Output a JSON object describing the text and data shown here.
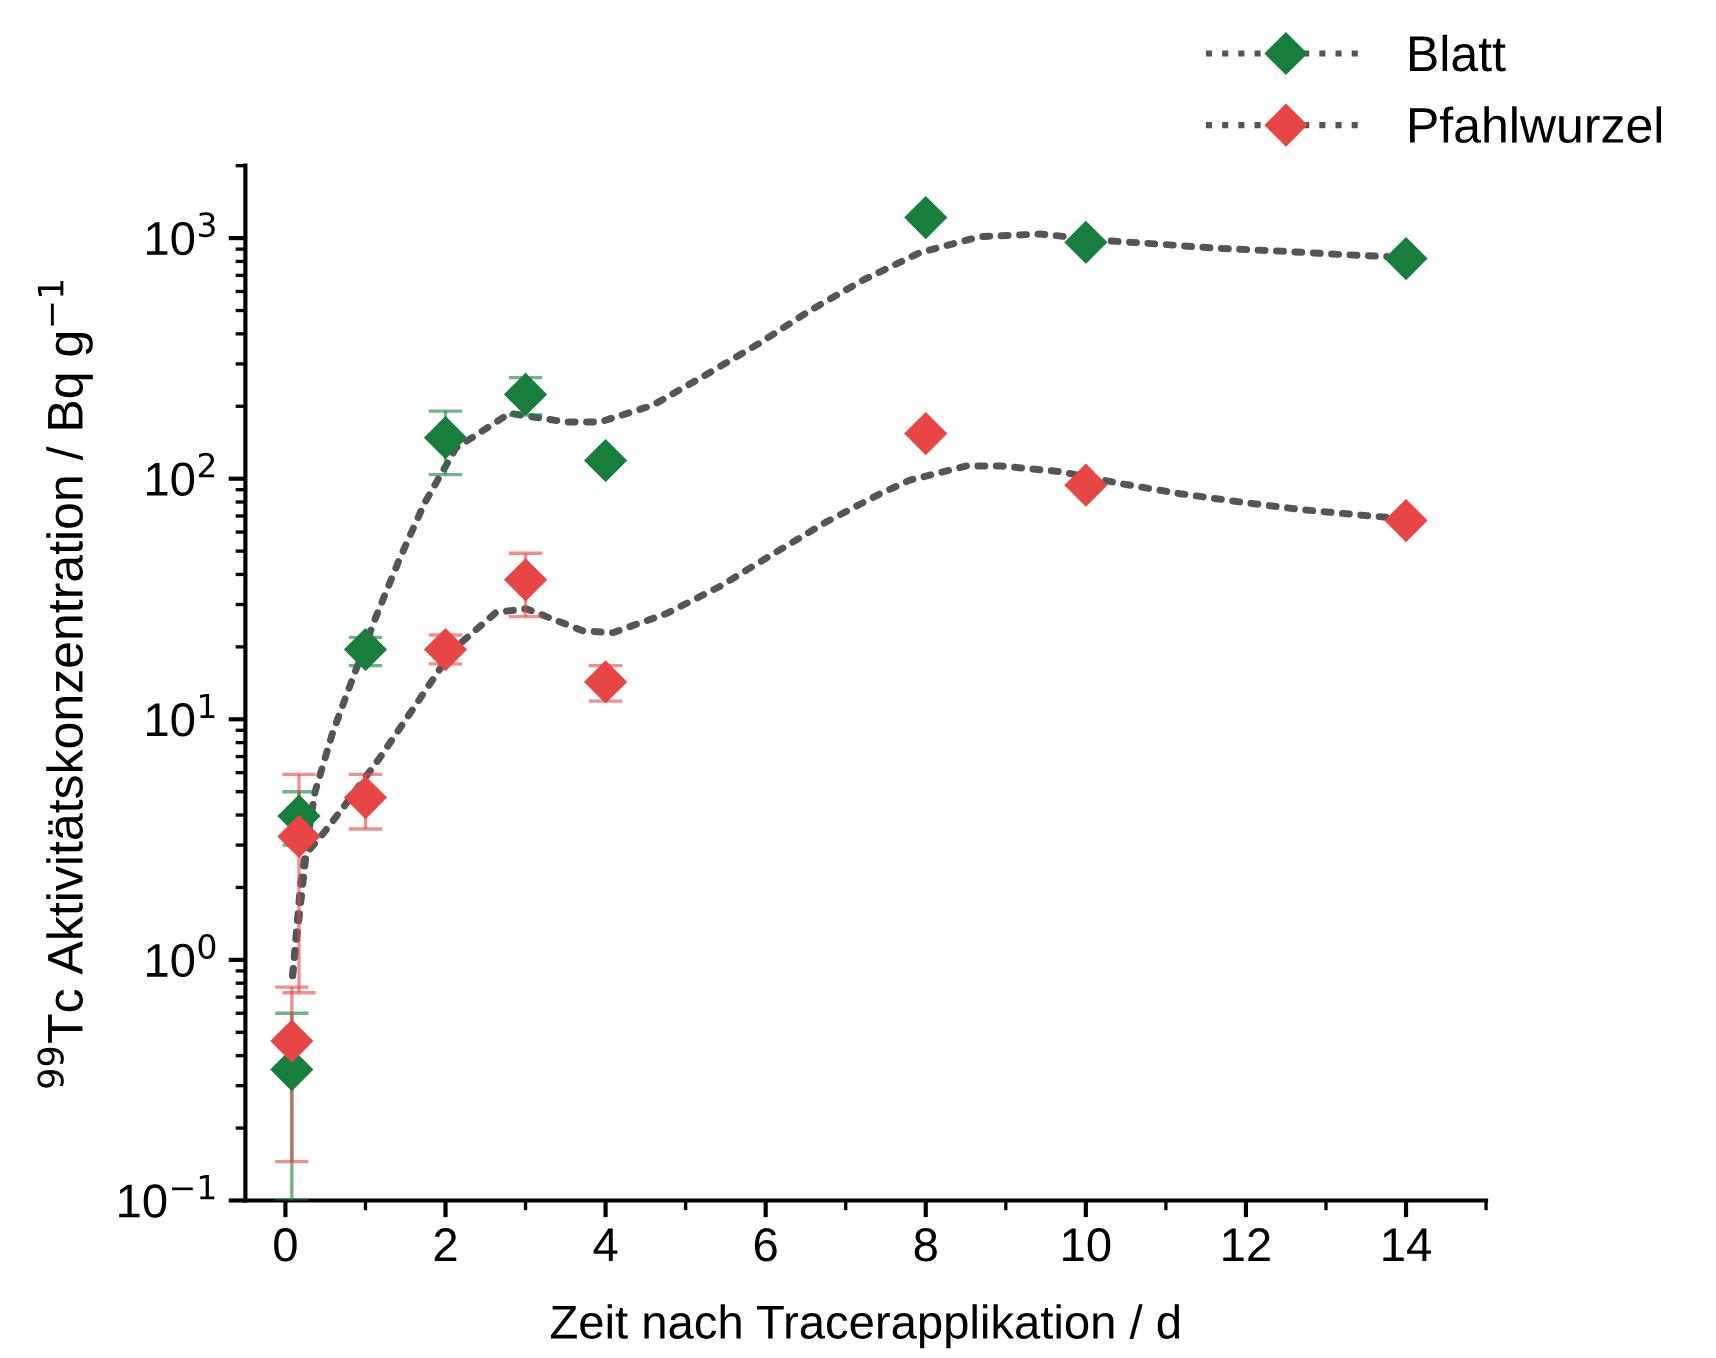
{
  "chart_data": {
    "type": "scatter",
    "xlabel": "Zeit nach Tracerapplikation / d",
    "ylabel": "$^{99}$Tc Aktivitätskonzentration / Bq g$^{−1}$",
    "log": "y",
    "xlim": [
      -0.5,
      15
    ],
    "ylim": [
      0.1,
      2000
    ],
    "xticks": [
      0,
      2,
      4,
      6,
      8,
      10,
      12,
      14
    ],
    "yticks": [
      {
        "value": 0.1,
        "label": "10$^{−1}$"
      },
      {
        "value": 1,
        "label": "10$^{0}$"
      },
      {
        "value": 10,
        "label": "10$^{1}$"
      },
      {
        "value": 100,
        "label": "10$^{2}$"
      },
      {
        "value": 1000,
        "label": "10$^{3}$"
      }
    ],
    "grid": false,
    "legend": "top right",
    "marker": "diamond",
    "series": [
      {
        "name": "Blatt",
        "color": "#177e3c",
        "x": [
          0.08,
          0.17,
          1,
          2,
          3,
          4,
          8,
          10,
          14
        ],
        "values": [
          0.35,
          3.96,
          19.5,
          148,
          224,
          119,
          1217,
          961,
          822
        ],
        "errors": [
          [
            0.1,
            0.6
          ],
          [
            3.0,
            5.0
          ],
          [
            16.7,
            21.9
          ],
          [
            104,
            191
          ],
          [
            184,
            263
          ],
          null,
          null,
          null,
          null
        ]
      },
      {
        "type": "line",
        "color": "#555555",
        "line_style": "dotted",
        "marker": "none",
        "x": [
          0.09,
          0.19,
          0.37,
          0.59,
          0.86,
          1.13,
          1.43,
          1.74,
          2.13,
          2.8,
          3.51,
          3.93,
          4.59,
          5.26,
          5.93,
          6.55,
          7.22,
          7.93,
          8.68,
          9.43,
          10.18,
          10.93,
          11.68,
          12.43,
          13.18,
          13.76
        ],
        "values": [
          0.86,
          2.08,
          4.99,
          8.8,
          15.4,
          26.6,
          46.7,
          79.4,
          134,
          187,
          172,
          172,
          202,
          271,
          367,
          499,
          670,
          871,
          1014,
          1040,
          980,
          943,
          906,
          883,
          855,
          838
        ]
      },
      {
        "name": "Pfahlwurzel",
        "color": "#e84545",
        "x": [
          0.08,
          0.17,
          1,
          2,
          3,
          4,
          8,
          10,
          14
        ],
        "values": [
          0.46,
          3.26,
          4.73,
          19.5,
          38,
          14.3,
          154,
          94,
          67
        ],
        "errors": [
          [
            0.145,
            0.77
          ],
          [
            0.73,
            5.9
          ],
          [
            3.5,
            5.9
          ],
          [
            17,
            22.4
          ],
          [
            26.7,
            49
          ],
          [
            11.9,
            16.7
          ],
          null,
          null,
          null
        ]
      },
      {
        "type": "line",
        "color": "#555555",
        "line_style": "dotted",
        "marker": "none",
        "x": [
          0.09,
          0.26,
          0.49,
          0.72,
          1.19,
          1.63,
          2.09,
          2.63,
          3.01,
          3.72,
          4.09,
          4.76,
          5.43,
          6.09,
          6.76,
          7.41,
          7.8,
          8.51,
          8.93,
          9.68,
          10.43,
          11.18,
          11.93,
          12.68,
          13.43,
          13.84
        ],
        "values": [
          0.86,
          2.77,
          3.41,
          4.29,
          7.0,
          11.5,
          19.4,
          27.8,
          28.8,
          23.3,
          22.9,
          27.5,
          35.7,
          48.6,
          66.2,
          85.9,
          98.6,
          113,
          113,
          107,
          95.5,
          86.6,
          80,
          74.5,
          70.6,
          68.8
        ]
      }
    ]
  }
}
